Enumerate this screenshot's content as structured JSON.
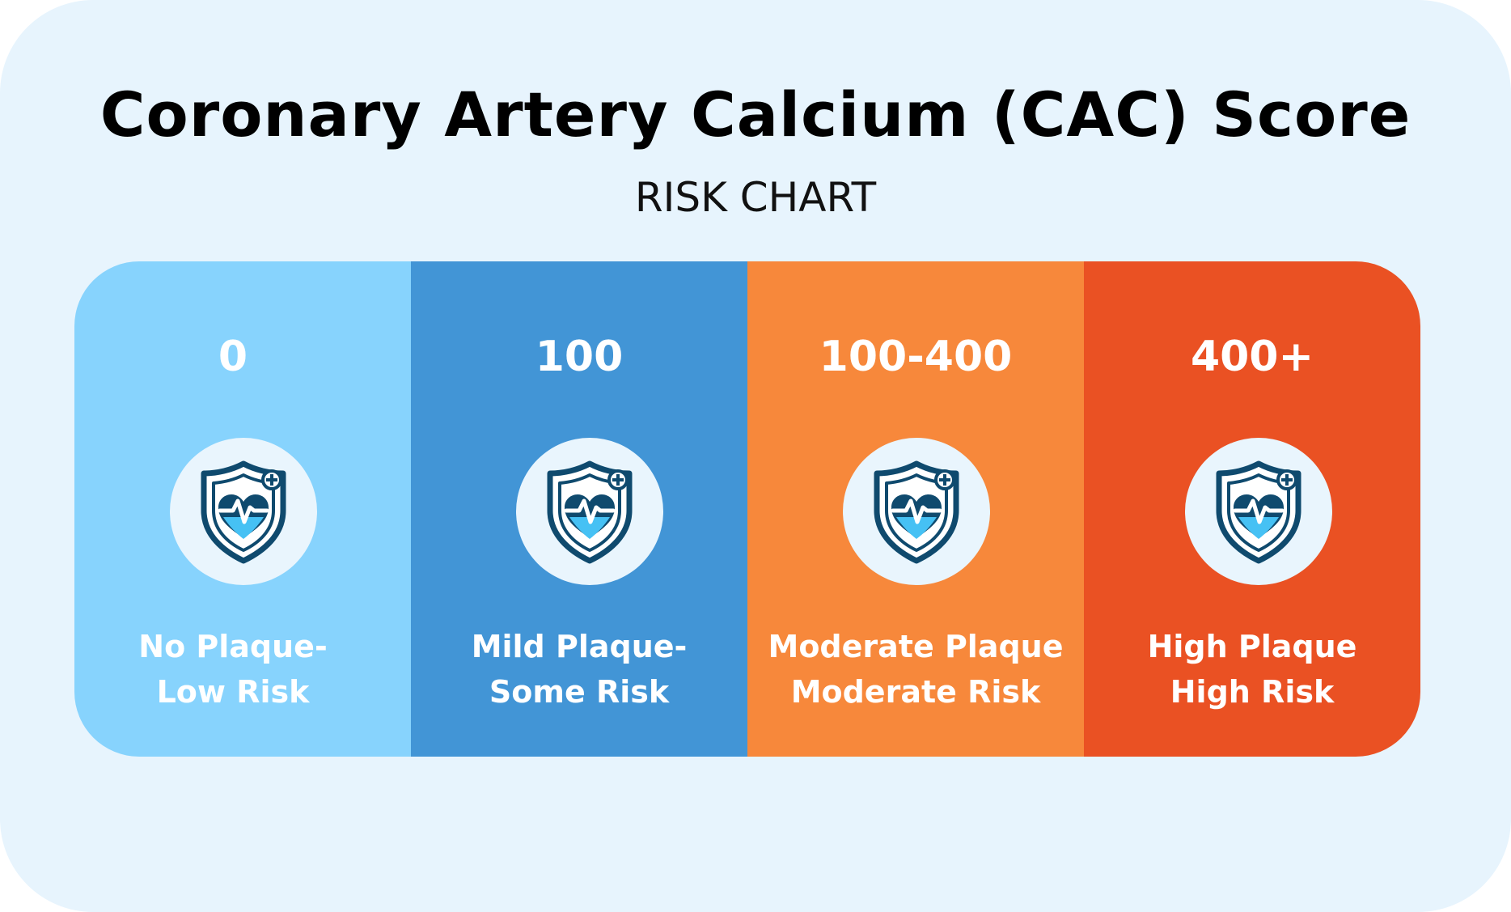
{
  "title": "Coronary Artery Calcium (CAC) Score",
  "subtitle": "RISK CHART",
  "icon": "heart-shield-icon",
  "segments": [
    {
      "score": "0",
      "line1": "No Plaque-",
      "line2": "Low Risk",
      "color": "#87d3fd"
    },
    {
      "score": "100",
      "line1": "Mild Plaque-",
      "line2": "Some Risk",
      "color": "#4295d6"
    },
    {
      "score": "100-400",
      "line1": "Moderate Plaque",
      "line2": "Moderate Risk",
      "color": "#f7883b"
    },
    {
      "score": "400+",
      "line1": "High Plaque",
      "line2": "High Risk",
      "color": "#ea5123"
    }
  ]
}
